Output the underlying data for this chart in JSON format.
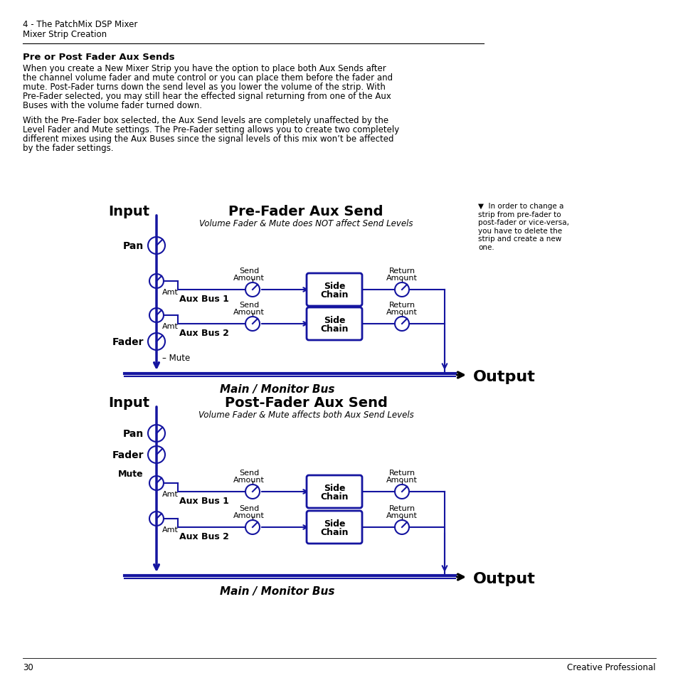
{
  "page_header_line1": "4 - The PatchMix DSP Mixer",
  "page_header_line2": "Mixer Strip Creation",
  "section_title": "Pre or Post Fader Aux Sends",
  "body_text1": "When you create a New Mixer Strip you have the option to place both Aux Sends after the channel volume fader and mute control or you can place them before the fader and mute. Post-Fader turns down the send level as you lower the volume of the strip. With Pre-Fader selected, you may still hear the effected signal returning from one of the Aux Buses with the volume fader turned down.",
  "body_text2": "With the Pre-Fader box selected, the Aux Send levels are completely unaffected by the Level Fader and Mute settings. The Pre-Fader setting allows you to create two completely different mixes using the Aux Buses since the signal levels of this mix won't be affected by the fader settings.",
  "diagram1_title": "Pre-Fader Aux Send",
  "diagram1_subtitle": "Volume Fader & Mute does NOT affect Send Levels",
  "diagram2_title": "Post-Fader Aux Send",
  "diagram2_subtitle": "Volume Fader & Mute affects both Aux Send Levels",
  "side_note": "▼  In order to change a\nstrip from pre-fader to\npost-fader or vice-versa,\nyou have to delete the\nstrip and create a new\none.",
  "page_number": "30",
  "page_footer": "Creative Professional",
  "diagram_color": "#1515a0",
  "text_color": "#000000",
  "bg_color": "#ffffff"
}
